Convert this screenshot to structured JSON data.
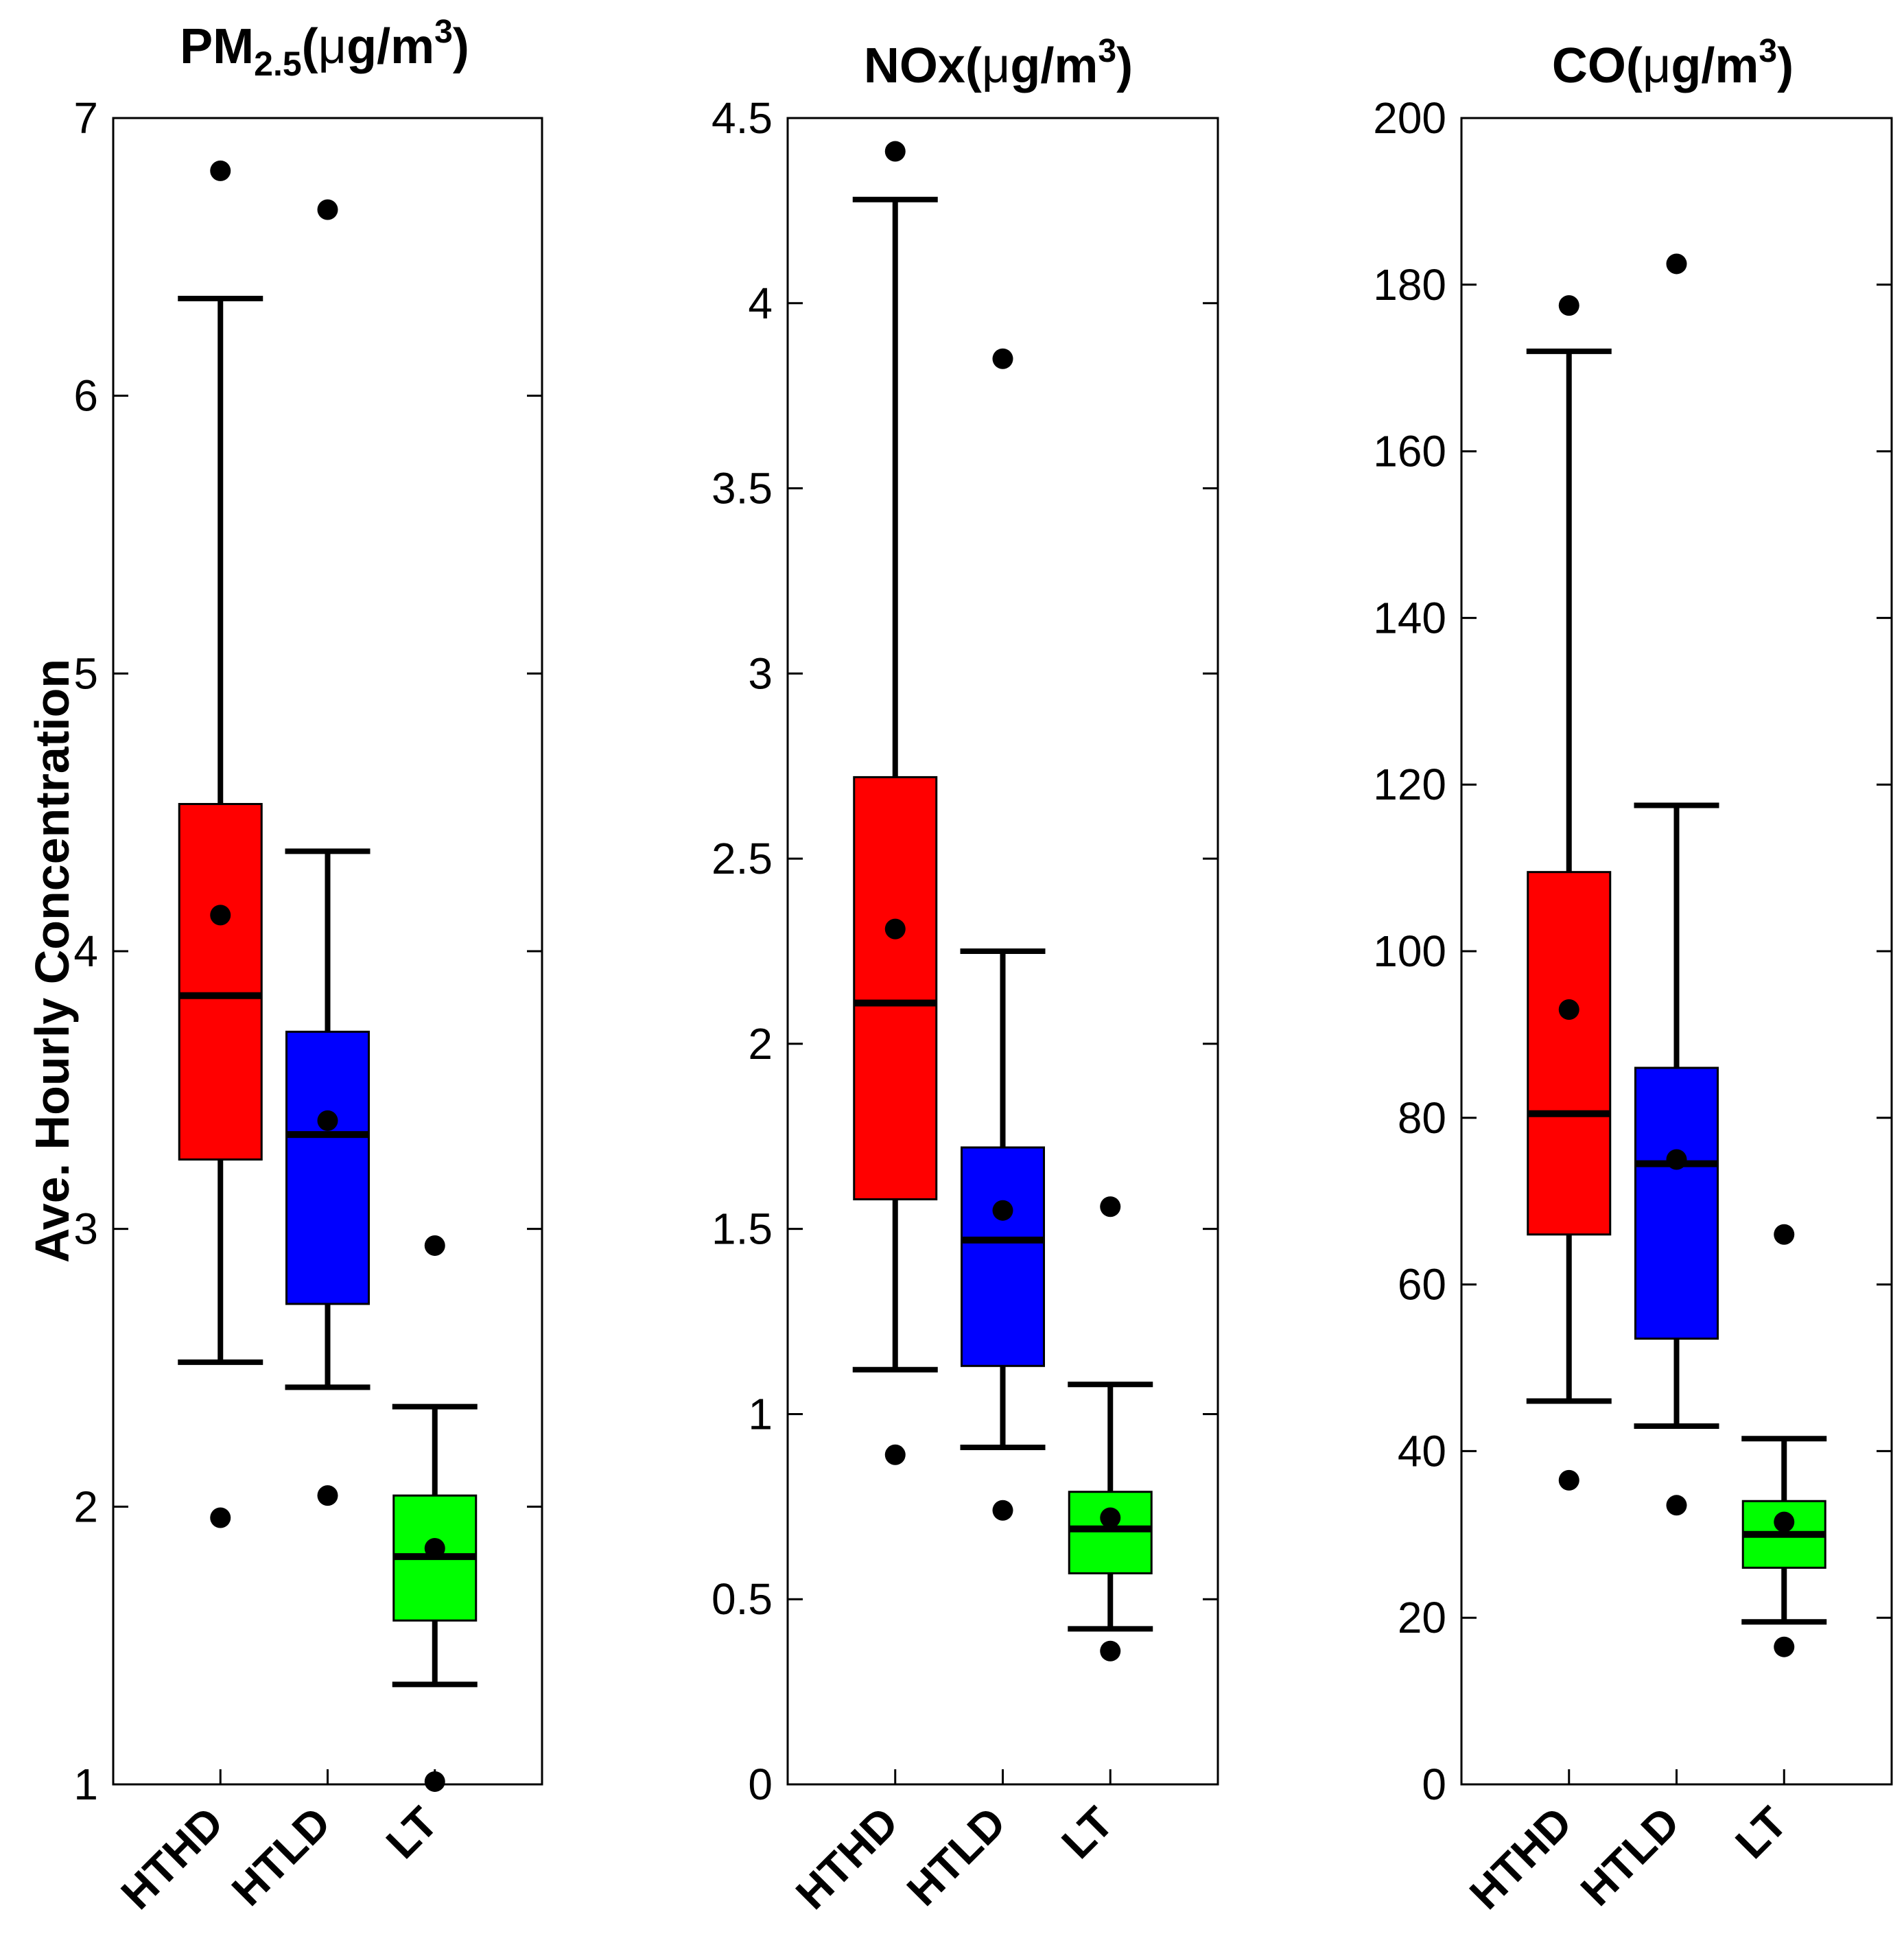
{
  "figure": {
    "ylabel": "Ave. Hourly Concentration"
  },
  "chart_data": [
    {
      "type": "box",
      "title_parts": {
        "main": "PM",
        "sub": "2.5",
        "unit_open": "(",
        "mu": "μ",
        "unit_mid": "g/m",
        "sup": "3",
        "unit_close": ")"
      },
      "categories": [
        "HTHD",
        "HTLD",
        "LT"
      ],
      "colors": [
        "#ff0000",
        "#0000ff",
        "#00ff00"
      ],
      "ylim": [
        1,
        7
      ],
      "yticks": [
        1,
        2,
        3,
        4,
        5,
        6,
        7
      ],
      "ytick_labels": [
        "1",
        "2",
        "3",
        "4",
        "5",
        "6",
        "7"
      ],
      "boxes": [
        {
          "whisker_low": 2.52,
          "q1": 3.25,
          "median": 3.84,
          "q3": 4.53,
          "whisker_high": 6.35,
          "mean": 4.13,
          "outlier_low": 1.96,
          "outlier_high": 6.81
        },
        {
          "whisker_low": 2.43,
          "q1": 2.73,
          "median": 3.34,
          "q3": 3.71,
          "whisker_high": 4.36,
          "mean": 3.39,
          "outlier_low": 2.04,
          "outlier_high": 6.67
        },
        {
          "whisker_low": 1.36,
          "q1": 1.59,
          "median": 1.82,
          "q3": 2.04,
          "whisker_high": 2.36,
          "mean": 1.85,
          "outlier_low": 1.01,
          "outlier_high": 2.94
        }
      ]
    },
    {
      "type": "box",
      "title_parts": {
        "main": "NOx(",
        "mu": "μ",
        "unit_mid": "g/m",
        "sup": "3",
        "unit_close": ")"
      },
      "categories": [
        "HTHD",
        "HTLD",
        "LT"
      ],
      "colors": [
        "#ff0000",
        "#0000ff",
        "#00ff00"
      ],
      "ylim": [
        0,
        4.5
      ],
      "yticks": [
        0,
        0.5,
        1,
        1.5,
        2,
        2.5,
        3,
        3.5,
        4,
        4.5
      ],
      "ytick_labels": [
        "0",
        "0.5",
        "1",
        "1.5",
        "2",
        "2.5",
        "3",
        "3.5",
        "4",
        "4.5"
      ],
      "boxes": [
        {
          "whisker_low": 1.12,
          "q1": 1.58,
          "median": 2.11,
          "q3": 2.72,
          "whisker_high": 4.28,
          "mean": 2.31,
          "outlier_low": 0.89,
          "outlier_high": 4.41
        },
        {
          "whisker_low": 0.91,
          "q1": 1.13,
          "median": 1.47,
          "q3": 1.72,
          "whisker_high": 2.25,
          "mean": 1.55,
          "outlier_low": 0.74,
          "outlier_high": 3.85
        },
        {
          "whisker_low": 0.42,
          "q1": 0.57,
          "median": 0.69,
          "q3": 0.79,
          "whisker_high": 1.08,
          "mean": 0.72,
          "outlier_low": 0.36,
          "outlier_high": 1.56
        }
      ]
    },
    {
      "type": "box",
      "title_parts": {
        "main": "CO(",
        "mu": "μ",
        "unit_mid": "g/m",
        "sup": "3",
        "unit_close": ")"
      },
      "categories": [
        "HTHD",
        "HTLD",
        "LT"
      ],
      "colors": [
        "#ff0000",
        "#0000ff",
        "#00ff00"
      ],
      "ylim": [
        0,
        200
      ],
      "yticks": [
        0,
        20,
        40,
        60,
        80,
        100,
        120,
        140,
        160,
        180,
        200
      ],
      "ytick_labels": [
        "0",
        "20",
        "40",
        "60",
        "80",
        "100",
        "120",
        "140",
        "160",
        "180",
        "200"
      ],
      "boxes": [
        {
          "whisker_low": 46,
          "q1": 66,
          "median": 80.5,
          "q3": 109.5,
          "whisker_high": 172,
          "mean": 93,
          "outlier_low": 36.5,
          "outlier_high": 177.5
        },
        {
          "whisker_low": 43,
          "q1": 53.5,
          "median": 74.5,
          "q3": 86,
          "whisker_high": 117.5,
          "mean": 75,
          "outlier_low": 33.5,
          "outlier_high": 182.5
        },
        {
          "whisker_low": 19.5,
          "q1": 26,
          "median": 30,
          "q3": 34,
          "whisker_high": 41.5,
          "mean": 31.5,
          "outlier_low": 16.5,
          "outlier_high": 66
        }
      ]
    }
  ]
}
